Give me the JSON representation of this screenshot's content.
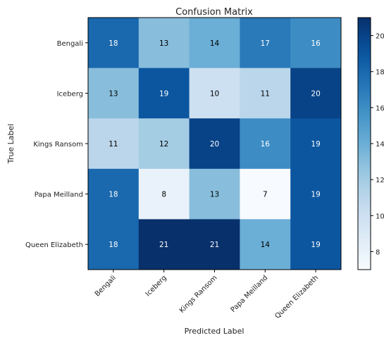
{
  "chart_data": {
    "type": "heatmap",
    "title": "Confusion Matrix",
    "xlabel": "Predicted Label",
    "ylabel": "True Label",
    "x_categories": [
      "Bengali",
      "Iceberg",
      "Kings Ransom",
      "Papa Meilland",
      "Queen Elizabeth"
    ],
    "y_categories": [
      "Bengali",
      "Iceberg",
      "Kings Ransom",
      "Papa Meilland",
      "Queen Elizabeth"
    ],
    "values": [
      [
        18,
        13,
        14,
        17,
        16
      ],
      [
        13,
        19,
        10,
        11,
        20
      ],
      [
        11,
        12,
        20,
        16,
        19
      ],
      [
        18,
        8,
        13,
        7,
        19
      ],
      [
        18,
        21,
        21,
        14,
        19
      ]
    ],
    "colormap": "Blues",
    "color_range": [
      7,
      21
    ],
    "colorbar_ticks": [
      8,
      10,
      12,
      14,
      16,
      18,
      20
    ]
  }
}
